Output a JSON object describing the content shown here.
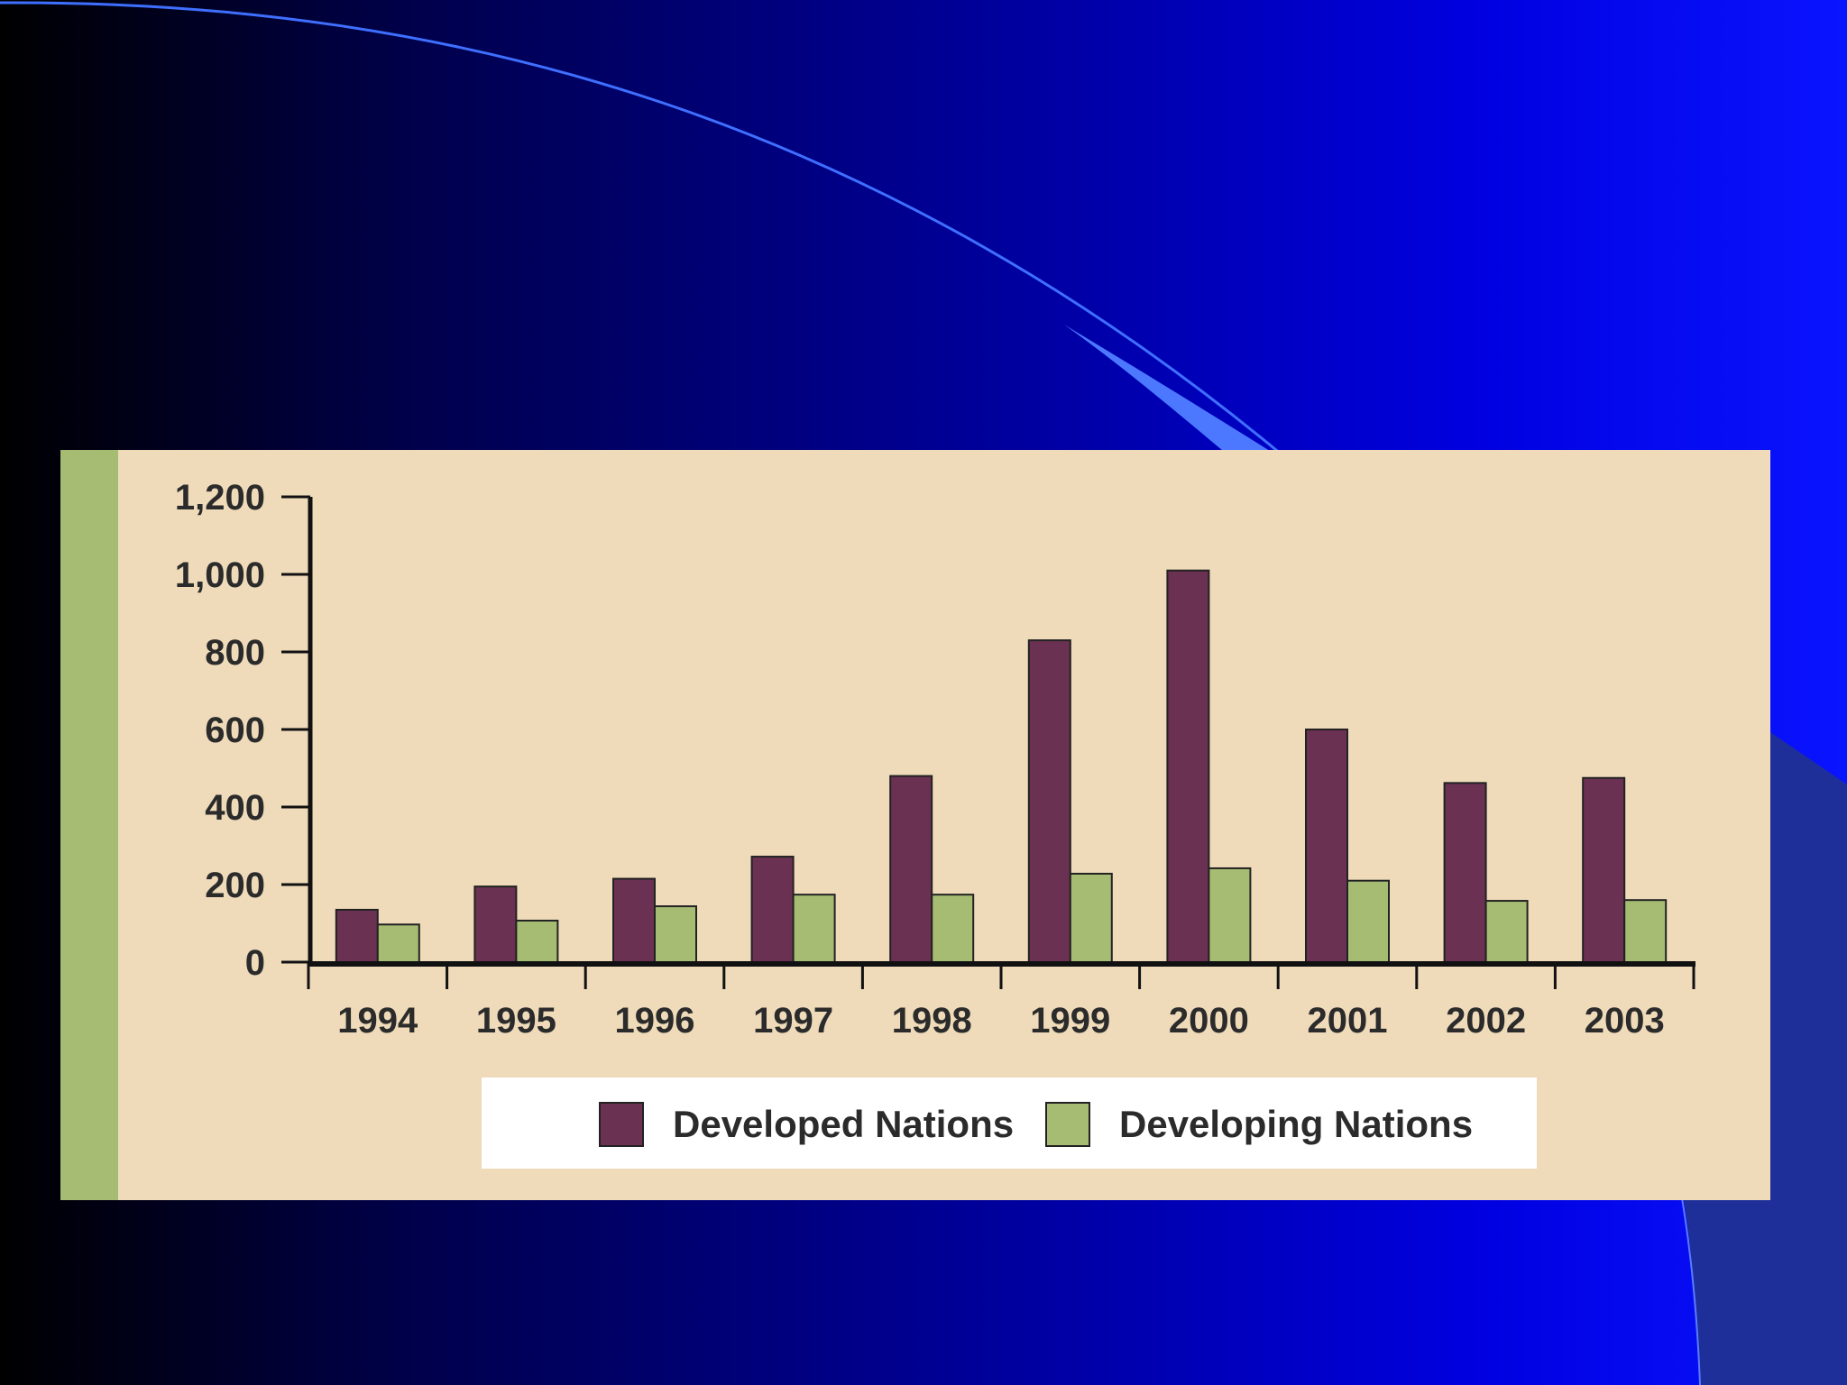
{
  "chart_data": {
    "type": "bar",
    "categories": [
      "1994",
      "1995",
      "1996",
      "1997",
      "1998",
      "1999",
      "2000",
      "2001",
      "2002",
      "2003"
    ],
    "series": [
      {
        "name": "Developed Nations",
        "color": "#6b3152",
        "values": [
          135,
          195,
          215,
          272,
          480,
          830,
          1010,
          600,
          462,
          475
        ]
      },
      {
        "name": "Developing Nations",
        "color": "#a6bc72",
        "values": [
          97,
          107,
          144,
          174,
          174,
          228,
          242,
          210,
          158,
          160
        ]
      }
    ],
    "ylim": [
      0,
      1200
    ],
    "yticks": [
      0,
      200,
      400,
      600,
      800,
      "1,000",
      "1,200"
    ],
    "title": "",
    "xlabel": "",
    "ylabel": "",
    "legend_position": "bottom",
    "grid": false,
    "background_color": "#efdbba"
  }
}
